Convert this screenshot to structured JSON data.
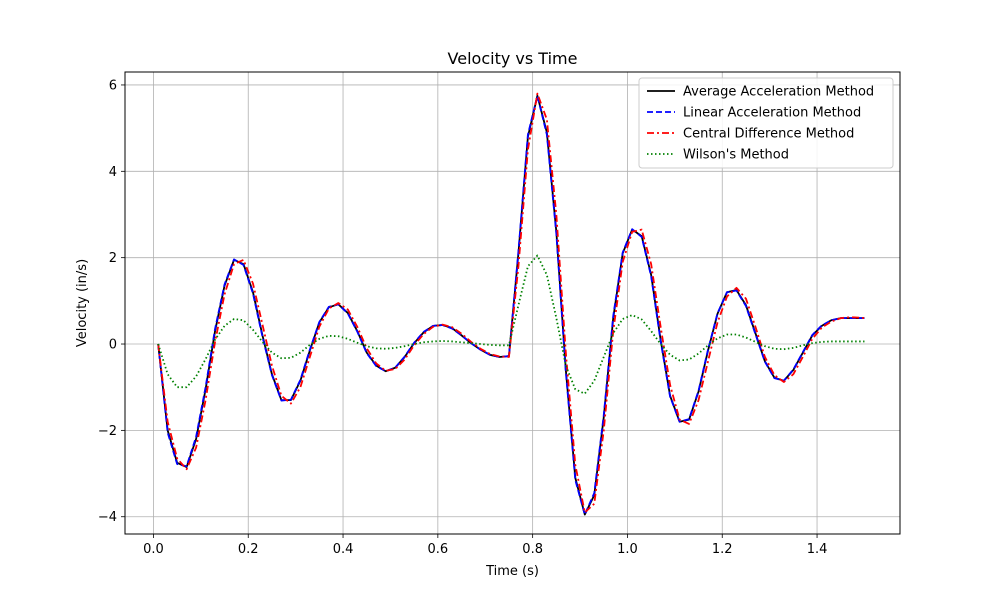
{
  "chart_data": {
    "type": "line",
    "title": "Velocity vs Time",
    "xlabel": "Time (s)",
    "ylabel": "Velocity (in/s)",
    "xlim": [
      -0.06,
      1.575
    ],
    "ylim": [
      -4.4,
      6.3
    ],
    "xticks": [
      0.0,
      0.2,
      0.4,
      0.6,
      0.8,
      1.0,
      1.2,
      1.4
    ],
    "xtick_labels": [
      "0.0",
      "0.2",
      "0.4",
      "0.6",
      "0.8",
      "1.0",
      "1.2",
      "1.4"
    ],
    "yticks": [
      -4,
      -2,
      0,
      2,
      4,
      6
    ],
    "ytick_labels": [
      "−4",
      "−2",
      "0",
      "2",
      "4",
      "6"
    ],
    "grid": true,
    "legend_position": "top-right",
    "series": [
      {
        "name": "Average Acceleration Method",
        "color": "#000000",
        "style": "solid",
        "x": [
          0.01,
          0.03,
          0.05,
          0.07,
          0.09,
          0.11,
          0.13,
          0.15,
          0.17,
          0.19,
          0.21,
          0.23,
          0.25,
          0.27,
          0.29,
          0.31,
          0.33,
          0.35,
          0.37,
          0.39,
          0.41,
          0.43,
          0.45,
          0.47,
          0.49,
          0.51,
          0.53,
          0.55,
          0.57,
          0.59,
          0.61,
          0.63,
          0.65,
          0.67,
          0.69,
          0.71,
          0.73,
          0.75,
          0.77,
          0.79,
          0.81,
          0.83,
          0.85,
          0.87,
          0.89,
          0.91,
          0.93,
          0.95,
          0.97,
          0.99,
          1.01,
          1.03,
          1.05,
          1.07,
          1.09,
          1.11,
          1.13,
          1.15,
          1.17,
          1.19,
          1.21,
          1.23,
          1.25,
          1.27,
          1.29,
          1.31,
          1.33,
          1.35,
          1.37,
          1.39,
          1.41,
          1.43,
          1.45,
          1.47,
          1.49,
          1.5
        ],
        "y": [
          0.0,
          -2.0,
          -2.75,
          -2.85,
          -2.2,
          -1.05,
          0.3,
          1.35,
          1.95,
          1.85,
          1.2,
          0.2,
          -0.7,
          -1.3,
          -1.3,
          -0.85,
          -0.15,
          0.5,
          0.85,
          0.92,
          0.72,
          0.3,
          -0.2,
          -0.5,
          -0.63,
          -0.55,
          -0.3,
          0.02,
          0.27,
          0.42,
          0.44,
          0.37,
          0.2,
          0.02,
          -0.13,
          -0.25,
          -0.3,
          -0.28,
          2.1,
          4.8,
          5.75,
          4.9,
          2.6,
          -0.6,
          -3.1,
          -3.95,
          -3.5,
          -1.7,
          0.6,
          2.1,
          2.65,
          2.5,
          1.6,
          0.1,
          -1.2,
          -1.8,
          -1.75,
          -1.1,
          -0.15,
          0.7,
          1.2,
          1.25,
          0.9,
          0.25,
          -0.4,
          -0.78,
          -0.85,
          -0.6,
          -0.2,
          0.2,
          0.42,
          0.55,
          0.6,
          0.6,
          0.6,
          0.6
        ]
      },
      {
        "name": "Linear Acceleration Method",
        "color": "#0000ff",
        "style": "dashed",
        "x": [
          0.01,
          0.03,
          0.05,
          0.07,
          0.09,
          0.11,
          0.13,
          0.15,
          0.17,
          0.19,
          0.21,
          0.23,
          0.25,
          0.27,
          0.29,
          0.31,
          0.33,
          0.35,
          0.37,
          0.39,
          0.41,
          0.43,
          0.45,
          0.47,
          0.49,
          0.51,
          0.53,
          0.55,
          0.57,
          0.59,
          0.61,
          0.63,
          0.65,
          0.67,
          0.69,
          0.71,
          0.73,
          0.75,
          0.77,
          0.79,
          0.81,
          0.83,
          0.85,
          0.87,
          0.89,
          0.91,
          0.93,
          0.95,
          0.97,
          0.99,
          1.01,
          1.03,
          1.05,
          1.07,
          1.09,
          1.11,
          1.13,
          1.15,
          1.17,
          1.19,
          1.21,
          1.23,
          1.25,
          1.27,
          1.29,
          1.31,
          1.33,
          1.35,
          1.37,
          1.39,
          1.41,
          1.43,
          1.45,
          1.47,
          1.49,
          1.5
        ],
        "y": [
          0.0,
          -2.05,
          -2.78,
          -2.83,
          -2.15,
          -1.0,
          0.35,
          1.38,
          1.96,
          1.83,
          1.17,
          0.17,
          -0.72,
          -1.31,
          -1.29,
          -0.83,
          -0.13,
          0.51,
          0.86,
          0.92,
          0.71,
          0.29,
          -0.21,
          -0.51,
          -0.63,
          -0.55,
          -0.29,
          0.03,
          0.28,
          0.42,
          0.44,
          0.36,
          0.2,
          0.02,
          -0.13,
          -0.25,
          -0.3,
          -0.28,
          2.15,
          4.85,
          5.75,
          4.85,
          2.55,
          -0.65,
          -3.15,
          -3.95,
          -3.45,
          -1.65,
          0.65,
          2.12,
          2.66,
          2.48,
          1.57,
          0.07,
          -1.22,
          -1.8,
          -1.74,
          -1.08,
          -0.13,
          0.71,
          1.2,
          1.24,
          0.88,
          0.23,
          -0.41,
          -0.79,
          -0.85,
          -0.59,
          -0.19,
          0.21,
          0.43,
          0.55,
          0.6,
          0.6,
          0.6,
          0.6
        ]
      },
      {
        "name": "Central Difference Method",
        "color": "#ff0000",
        "style": "dashdot",
        "x": [
          0.01,
          0.03,
          0.05,
          0.07,
          0.09,
          0.11,
          0.13,
          0.15,
          0.17,
          0.19,
          0.21,
          0.23,
          0.25,
          0.27,
          0.29,
          0.31,
          0.33,
          0.35,
          0.37,
          0.39,
          0.41,
          0.43,
          0.45,
          0.47,
          0.49,
          0.51,
          0.53,
          0.55,
          0.57,
          0.59,
          0.61,
          0.63,
          0.65,
          0.67,
          0.69,
          0.71,
          0.73,
          0.75,
          0.77,
          0.79,
          0.81,
          0.83,
          0.85,
          0.87,
          0.89,
          0.91,
          0.93,
          0.95,
          0.97,
          0.99,
          1.01,
          1.03,
          1.05,
          1.07,
          1.09,
          1.11,
          1.13,
          1.15,
          1.17,
          1.19,
          1.21,
          1.23,
          1.25,
          1.27,
          1.29,
          1.31,
          1.33,
          1.35,
          1.37,
          1.39,
          1.41,
          1.43,
          1.45,
          1.47,
          1.49,
          1.5
        ],
        "y": [
          0.0,
          -1.8,
          -2.65,
          -2.9,
          -2.4,
          -1.3,
          0.05,
          1.15,
          1.85,
          1.95,
          1.4,
          0.45,
          -0.5,
          -1.2,
          -1.38,
          -1.0,
          -0.3,
          0.4,
          0.82,
          0.95,
          0.8,
          0.4,
          -0.1,
          -0.45,
          -0.62,
          -0.58,
          -0.36,
          -0.03,
          0.23,
          0.4,
          0.45,
          0.39,
          0.24,
          0.05,
          -0.11,
          -0.23,
          -0.29,
          -0.3,
          1.8,
          4.5,
          5.8,
          5.2,
          3.0,
          -0.2,
          -2.8,
          -3.9,
          -3.7,
          -2.0,
          0.3,
          1.9,
          2.6,
          2.65,
          1.85,
          0.4,
          -0.95,
          -1.75,
          -1.85,
          -1.3,
          -0.4,
          0.5,
          1.1,
          1.3,
          1.05,
          0.4,
          -0.3,
          -0.72,
          -0.88,
          -0.7,
          -0.3,
          0.12,
          0.38,
          0.52,
          0.6,
          0.62,
          0.61,
          0.6
        ]
      },
      {
        "name": "Wilson's Method",
        "color": "#008000",
        "style": "dotted",
        "x": [
          0.01,
          0.03,
          0.05,
          0.07,
          0.09,
          0.11,
          0.13,
          0.15,
          0.17,
          0.19,
          0.21,
          0.23,
          0.25,
          0.27,
          0.29,
          0.31,
          0.33,
          0.35,
          0.37,
          0.39,
          0.41,
          0.43,
          0.45,
          0.47,
          0.49,
          0.51,
          0.53,
          0.55,
          0.57,
          0.59,
          0.61,
          0.63,
          0.65,
          0.67,
          0.69,
          0.71,
          0.73,
          0.75,
          0.77,
          0.79,
          0.81,
          0.83,
          0.85,
          0.87,
          0.89,
          0.91,
          0.93,
          0.95,
          0.97,
          0.99,
          1.01,
          1.03,
          1.05,
          1.07,
          1.09,
          1.11,
          1.13,
          1.15,
          1.17,
          1.19,
          1.21,
          1.23,
          1.25,
          1.27,
          1.29,
          1.31,
          1.33,
          1.35,
          1.37,
          1.39,
          1.41,
          1.43,
          1.45,
          1.47,
          1.49,
          1.5
        ],
        "y": [
          0.0,
          -0.7,
          -1.0,
          -1.0,
          -0.75,
          -0.35,
          0.1,
          0.42,
          0.58,
          0.55,
          0.33,
          0.05,
          -0.2,
          -0.33,
          -0.32,
          -0.2,
          -0.02,
          0.12,
          0.19,
          0.18,
          0.12,
          0.03,
          -0.05,
          -0.1,
          -0.11,
          -0.09,
          -0.05,
          0.0,
          0.04,
          0.06,
          0.07,
          0.06,
          0.04,
          0.02,
          0.0,
          -0.02,
          -0.03,
          -0.03,
          0.9,
          1.8,
          2.05,
          1.6,
          0.6,
          -0.5,
          -1.05,
          -1.15,
          -0.85,
          -0.3,
          0.25,
          0.58,
          0.67,
          0.57,
          0.3,
          0.0,
          -0.25,
          -0.38,
          -0.36,
          -0.22,
          -0.03,
          0.13,
          0.22,
          0.22,
          0.15,
          0.05,
          -0.05,
          -0.11,
          -0.12,
          -0.09,
          -0.03,
          0.02,
          0.05,
          0.06,
          0.06,
          0.06,
          0.06,
          0.06
        ]
      }
    ]
  }
}
